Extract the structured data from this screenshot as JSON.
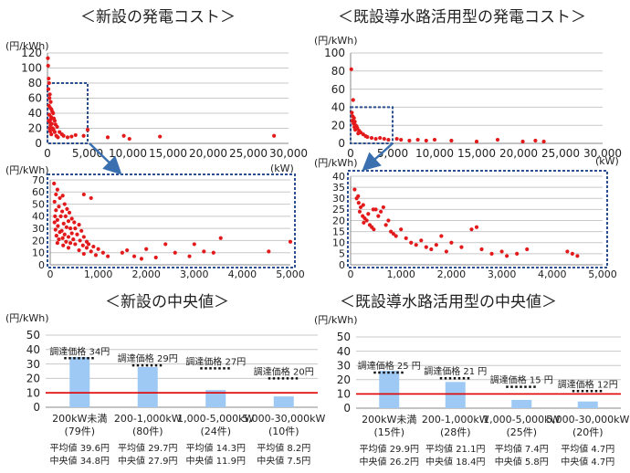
{
  "titles": {
    "new_cost": "＜新設の発電コスト＞",
    "existing_cost": "＜既設導水路活用型の発電コスト＞",
    "new_median": "＜新設の中央値＞",
    "existing_median": "＜既設導水路活用型の中央値＞"
  },
  "units": {
    "yen_per_kwh": "(円/kWh)",
    "kw": "(kW)"
  },
  "colors": {
    "point": "#e31a1c",
    "bar": "#9ec9f4",
    "price_line": "#e00000",
    "zoom_box": "#2b4f8f",
    "arrow": "#3a6fb0",
    "grid": "#c8c8c8",
    "dotted": "#111111"
  },
  "chart_data": [
    {
      "type": "scatter",
      "name": "new_full",
      "xlim": [
        0,
        30000
      ],
      "ylim": [
        0,
        120
      ],
      "xticks": [
        "0",
        "5,000",
        "10,000",
        "15,000",
        "20,000",
        "25,000",
        "30,000"
      ],
      "yticks": [
        "0",
        "20",
        "40",
        "60",
        "80",
        "100",
        "120"
      ],
      "xlabel": "",
      "ylabel": "(円/kWh)",
      "zoom_box": {
        "x": [
          0,
          5000
        ],
        "y": [
          0,
          80
        ]
      },
      "points": [
        [
          50,
          113
        ],
        [
          80,
          103
        ],
        [
          150,
          86
        ],
        [
          200,
          80
        ],
        [
          120,
          72
        ],
        [
          300,
          65
        ],
        [
          250,
          60
        ],
        [
          400,
          55
        ],
        [
          180,
          50
        ],
        [
          350,
          47
        ],
        [
          500,
          45
        ],
        [
          600,
          42
        ],
        [
          700,
          40
        ],
        [
          220,
          38
        ],
        [
          450,
          35
        ],
        [
          800,
          33
        ],
        [
          900,
          30
        ],
        [
          150,
          30
        ],
        [
          300,
          28
        ],
        [
          550,
          26
        ],
        [
          1000,
          25
        ],
        [
          1200,
          22
        ],
        [
          650,
          20
        ],
        [
          750,
          18
        ],
        [
          1500,
          15
        ],
        [
          1800,
          12
        ],
        [
          2000,
          10
        ],
        [
          2500,
          8
        ],
        [
          3000,
          9
        ],
        [
          3500,
          11
        ],
        [
          380,
          24
        ],
        [
          420,
          32
        ],
        [
          260,
          20
        ],
        [
          340,
          16
        ],
        [
          480,
          12
        ],
        [
          900,
          15
        ],
        [
          1100,
          10
        ],
        [
          1300,
          8
        ],
        [
          4500,
          10
        ],
        [
          5000,
          18
        ],
        [
          7500,
          8
        ],
        [
          9500,
          10
        ],
        [
          10200,
          6
        ],
        [
          14000,
          9
        ],
        [
          28200,
          10
        ]
      ]
    },
    {
      "type": "scatter",
      "name": "existing_full",
      "xlim": [
        0,
        30000
      ],
      "ylim": [
        0,
        100
      ],
      "xticks": [
        "0",
        "5,000",
        "10,000",
        "15,000",
        "20,000",
        "25,000",
        "30,000"
      ],
      "yticks": [
        "0",
        "20",
        "40",
        "60",
        "80",
        "100"
      ],
      "xlabel": "(kW)",
      "ylabel": "(円/kWh)",
      "zoom_box": {
        "x": [
          0,
          5000
        ],
        "y": [
          0,
          40
        ]
      },
      "points": [
        [
          80,
          82
        ],
        [
          300,
          48
        ],
        [
          150,
          34
        ],
        [
          250,
          30
        ],
        [
          400,
          28
        ],
        [
          200,
          25
        ],
        [
          500,
          24
        ],
        [
          350,
          22
        ],
        [
          600,
          20
        ],
        [
          700,
          19
        ],
        [
          450,
          18
        ],
        [
          800,
          17
        ],
        [
          550,
          15
        ],
        [
          1000,
          14
        ],
        [
          1200,
          12
        ],
        [
          900,
          11
        ],
        [
          1500,
          10
        ],
        [
          1800,
          8
        ],
        [
          2000,
          7
        ],
        [
          2500,
          6
        ],
        [
          3000,
          5
        ],
        [
          3500,
          6
        ],
        [
          4000,
          5
        ],
        [
          4500,
          4
        ],
        [
          5500,
          5
        ],
        [
          6000,
          4
        ],
        [
          7000,
          3
        ],
        [
          8000,
          4
        ],
        [
          9000,
          3
        ],
        [
          10000,
          4
        ],
        [
          12000,
          3
        ],
        [
          15000,
          2
        ],
        [
          17500,
          4
        ],
        [
          20500,
          2
        ],
        [
          22000,
          3
        ],
        [
          23000,
          2
        ]
      ]
    },
    {
      "type": "scatter",
      "name": "new_zoom",
      "xlim": [
        0,
        5000
      ],
      "ylim": [
        0,
        70
      ],
      "xticks": [
        "0",
        "1,000",
        "2,000",
        "3,000",
        "4,000",
        "5,000"
      ],
      "yticks": [
        "0",
        "10",
        "20",
        "30",
        "40",
        "50",
        "60",
        "70"
      ],
      "xlabel": "(kW)",
      "ylabel": "(円/kWh)",
      "points": [
        [
          80,
          67
        ],
        [
          150,
          62
        ],
        [
          120,
          58
        ],
        [
          200,
          55
        ],
        [
          260,
          57
        ],
        [
          90,
          52
        ],
        [
          300,
          50
        ],
        [
          180,
          48
        ],
        [
          350,
          46
        ],
        [
          120,
          45
        ],
        [
          250,
          44
        ],
        [
          400,
          43
        ],
        [
          100,
          40
        ],
        [
          220,
          40
        ],
        [
          320,
          40
        ],
        [
          450,
          38
        ],
        [
          150,
          37
        ],
        [
          380,
          36
        ],
        [
          500,
          35
        ],
        [
          90,
          35
        ],
        [
          280,
          34
        ],
        [
          600,
          33
        ],
        [
          160,
          32
        ],
        [
          340,
          31
        ],
        [
          420,
          30
        ],
        [
          520,
          30
        ],
        [
          110,
          29
        ],
        [
          240,
          28
        ],
        [
          650,
          28
        ],
        [
          200,
          27
        ],
        [
          450,
          26
        ],
        [
          300,
          25
        ],
        [
          560,
          25
        ],
        [
          130,
          24
        ],
        [
          380,
          23
        ],
        [
          700,
          23
        ],
        [
          260,
          22
        ],
        [
          480,
          21
        ],
        [
          180,
          21
        ],
        [
          620,
          20
        ],
        [
          330,
          19
        ],
        [
          760,
          19
        ],
        [
          150,
          18
        ],
        [
          420,
          18
        ],
        [
          520,
          17
        ],
        [
          800,
          17
        ],
        [
          270,
          16
        ],
        [
          680,
          16
        ],
        [
          900,
          15
        ],
        [
          380,
          14
        ],
        [
          760,
          14
        ],
        [
          1000,
          13
        ],
        [
          600,
          12
        ],
        [
          850,
          11
        ],
        [
          1100,
          10
        ],
        [
          700,
          9
        ],
        [
          950,
          8
        ],
        [
          1200,
          7
        ],
        [
          1500,
          10
        ],
        [
          1600,
          12
        ],
        [
          1750,
          7
        ],
        [
          1900,
          5
        ],
        [
          2000,
          13
        ],
        [
          2200,
          6
        ],
        [
          2400,
          17
        ],
        [
          2600,
          10
        ],
        [
          2900,
          7
        ],
        [
          3000,
          17
        ],
        [
          3200,
          11
        ],
        [
          3400,
          10
        ],
        [
          3550,
          22
        ],
        [
          4550,
          11
        ],
        [
          5000,
          19
        ],
        [
          700,
          58
        ],
        [
          850,
          55
        ]
      ]
    },
    {
      "type": "scatter",
      "name": "existing_zoom",
      "xlim": [
        0,
        5000
      ],
      "ylim": [
        0,
        40
      ],
      "xticks": [
        "0",
        "1,000",
        "2,000",
        "3,000",
        "4,000",
        "5,000"
      ],
      "yticks": [
        "0",
        "5",
        "10",
        "15",
        "20",
        "25",
        "30",
        "35",
        "40"
      ],
      "xlabel": "",
      "ylabel": "(円/kWh)",
      "points": [
        [
          80,
          34
        ],
        [
          120,
          30
        ],
        [
          160,
          28
        ],
        [
          200,
          26
        ],
        [
          180,
          24
        ],
        [
          240,
          22
        ],
        [
          280,
          21
        ],
        [
          320,
          20
        ],
        [
          260,
          19
        ],
        [
          380,
          18
        ],
        [
          420,
          17
        ],
        [
          460,
          16
        ],
        [
          500,
          25
        ],
        [
          550,
          22
        ],
        [
          600,
          24
        ],
        [
          650,
          26
        ],
        [
          700,
          18
        ],
        [
          750,
          20
        ],
        [
          800,
          15
        ],
        [
          850,
          14
        ],
        [
          900,
          13
        ],
        [
          1000,
          16
        ],
        [
          1100,
          12
        ],
        [
          1200,
          10
        ],
        [
          1300,
          9
        ],
        [
          1400,
          11
        ],
        [
          1500,
          8
        ],
        [
          1600,
          7
        ],
        [
          1700,
          9
        ],
        [
          1800,
          13
        ],
        [
          1900,
          6
        ],
        [
          2000,
          10
        ],
        [
          2200,
          8
        ],
        [
          2400,
          16
        ],
        [
          2500,
          17
        ],
        [
          2600,
          7
        ],
        [
          2800,
          5
        ],
        [
          3000,
          6
        ],
        [
          3100,
          4
        ],
        [
          3300,
          5
        ],
        [
          3500,
          7
        ],
        [
          4300,
          6
        ],
        [
          4400,
          5
        ],
        [
          4500,
          4
        ],
        [
          350,
          23
        ],
        [
          450,
          25
        ],
        [
          250,
          27
        ],
        [
          150,
          31
        ]
      ]
    },
    {
      "type": "bar",
      "name": "new_median",
      "ylim": [
        0,
        50
      ],
      "yticks": [
        "0",
        "10",
        "20",
        "30",
        "40",
        "50"
      ],
      "ylabel": "(円/kWh)",
      "price_line": 10,
      "categories": [
        "200kW未満",
        "200-1,000kW",
        "1,000-5,000kW",
        "5,000-30,000kW"
      ],
      "counts": [
        "(79件)",
        "(80件)",
        "(24件)",
        "(10件)"
      ],
      "values": [
        34.8,
        27.9,
        11.9,
        7.5
      ],
      "procurement": [
        34,
        29,
        27,
        20
      ],
      "procurement_labels": [
        "調達価格 34円",
        "調達価格 29円",
        "調達価格 27円",
        "調達価格 20円"
      ],
      "averages": [
        "平均値 39.6円",
        "平均値 29.7円",
        "平均値 14.3円",
        "平均値 8.2円"
      ],
      "medians": [
        "中央値 34.8円",
        "中央値 27.9円",
        "中央値 11.9円",
        "中央値 7.5円"
      ]
    },
    {
      "type": "bar",
      "name": "existing_median",
      "ylim": [
        0,
        50
      ],
      "yticks": [
        "0",
        "10",
        "20",
        "30",
        "40",
        "50"
      ],
      "ylabel": "(円/kWh)",
      "price_line": 10,
      "categories": [
        "200kW未満",
        "200-1,000kW",
        "1,000-5,000kW",
        "5,000-30,000kW"
      ],
      "counts": [
        "(15件)",
        "(28件)",
        "(25件)",
        "(20件)"
      ],
      "values": [
        26.2,
        18.4,
        5.8,
        4.7
      ],
      "procurement": [
        25,
        21,
        15,
        12
      ],
      "procurement_labels": [
        "調達価格 25 円",
        "調達価格 21 円",
        "調達価格 15 円",
        "調達価格 12円"
      ],
      "averages": [
        "平均値 29.9円",
        "平均値 21.1円",
        "平均値 7.4円",
        "平均値 4.7円"
      ],
      "medians": [
        "中央値 26.2円",
        "中央値 18.4円",
        "中央値 5.8円",
        "中央値 4.7円"
      ]
    }
  ]
}
